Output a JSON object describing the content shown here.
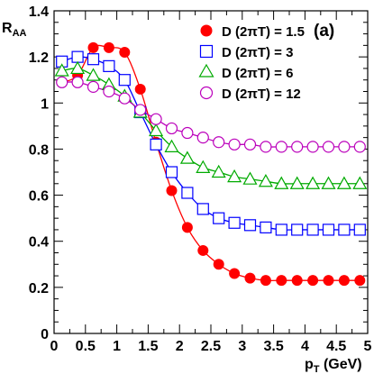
{
  "chart_data": {
    "type": "line",
    "title": "",
    "panel_label": "(a)",
    "xlabel": "p",
    "xlabel_sub": "T",
    "xlabel_unit": " (GeV)",
    "ylabel": "R",
    "ylabel_sub": "AA",
    "xlim": [
      0,
      5
    ],
    "ylim": [
      0,
      1.4
    ],
    "x_ticks": [
      0,
      0.5,
      1,
      1.5,
      2,
      2.5,
      3,
      3.5,
      4,
      4.5,
      5
    ],
    "x_tick_labels": [
      "0",
      "0.5",
      "1",
      "1.5",
      "2",
      "2.5",
      "3",
      "3.5",
      "4",
      "4.5",
      "5"
    ],
    "y_ticks": [
      0,
      0.2,
      0.4,
      0.6,
      0.8,
      1,
      1.2,
      1.4
    ],
    "y_tick_labels": [
      "0",
      "0.2",
      "0.4",
      "0.6",
      "0.8",
      "1",
      "1.2",
      "1.4"
    ],
    "grid": false,
    "legend_position": "top-right",
    "series": [
      {
        "name": "D (2πT) = 1.5",
        "marker": "filled-circle",
        "color": "#ff0000",
        "x": [
          0.125,
          0.375,
          0.625,
          0.875,
          1.125,
          1.375,
          1.625,
          1.875,
          2.125,
          2.375,
          2.625,
          2.875,
          3.125,
          3.375,
          3.625,
          3.875,
          4.125,
          4.375,
          4.625,
          4.875
        ],
        "y": [
          1.09,
          1.12,
          1.24,
          1.24,
          1.22,
          1.06,
          0.83,
          0.62,
          0.46,
          0.36,
          0.3,
          0.26,
          0.24,
          0.23,
          0.23,
          0.23,
          0.23,
          0.23,
          0.23,
          0.23
        ]
      },
      {
        "name": "D (2πT) = 3",
        "marker": "open-square",
        "color": "#0000ff",
        "x": [
          0.125,
          0.375,
          0.625,
          0.875,
          1.125,
          1.375,
          1.625,
          1.875,
          2.125,
          2.375,
          2.625,
          2.875,
          3.125,
          3.375,
          3.625,
          3.875,
          4.125,
          4.375,
          4.625,
          4.875
        ],
        "y": [
          1.18,
          1.2,
          1.19,
          1.16,
          1.1,
          0.96,
          0.82,
          0.7,
          0.61,
          0.54,
          0.5,
          0.48,
          0.47,
          0.46,
          0.45,
          0.45,
          0.45,
          0.45,
          0.45,
          0.45
        ]
      },
      {
        "name": "D (2πT) = 6",
        "marker": "open-triangle",
        "color": "#00aa00",
        "x": [
          0.125,
          0.375,
          0.625,
          0.875,
          1.125,
          1.375,
          1.625,
          1.875,
          2.125,
          2.375,
          2.625,
          2.875,
          3.125,
          3.375,
          3.625,
          3.875,
          4.125,
          4.375,
          4.625,
          4.875
        ],
        "y": [
          1.14,
          1.15,
          1.12,
          1.08,
          1.03,
          0.96,
          0.88,
          0.81,
          0.76,
          0.72,
          0.7,
          0.68,
          0.67,
          0.66,
          0.65,
          0.65,
          0.65,
          0.65,
          0.65,
          0.65
        ]
      },
      {
        "name": "D (2πT) = 12",
        "marker": "open-circle",
        "color": "#bb00bb",
        "x": [
          0.125,
          0.375,
          0.625,
          0.875,
          1.125,
          1.375,
          1.625,
          1.875,
          2.125,
          2.375,
          2.625,
          2.875,
          3.125,
          3.375,
          3.625,
          3.875,
          4.125,
          4.375,
          4.625,
          4.875
        ],
        "y": [
          1.09,
          1.09,
          1.07,
          1.05,
          1.02,
          0.97,
          0.93,
          0.89,
          0.87,
          0.85,
          0.83,
          0.82,
          0.82,
          0.81,
          0.81,
          0.81,
          0.81,
          0.81,
          0.81,
          0.81
        ]
      }
    ]
  }
}
